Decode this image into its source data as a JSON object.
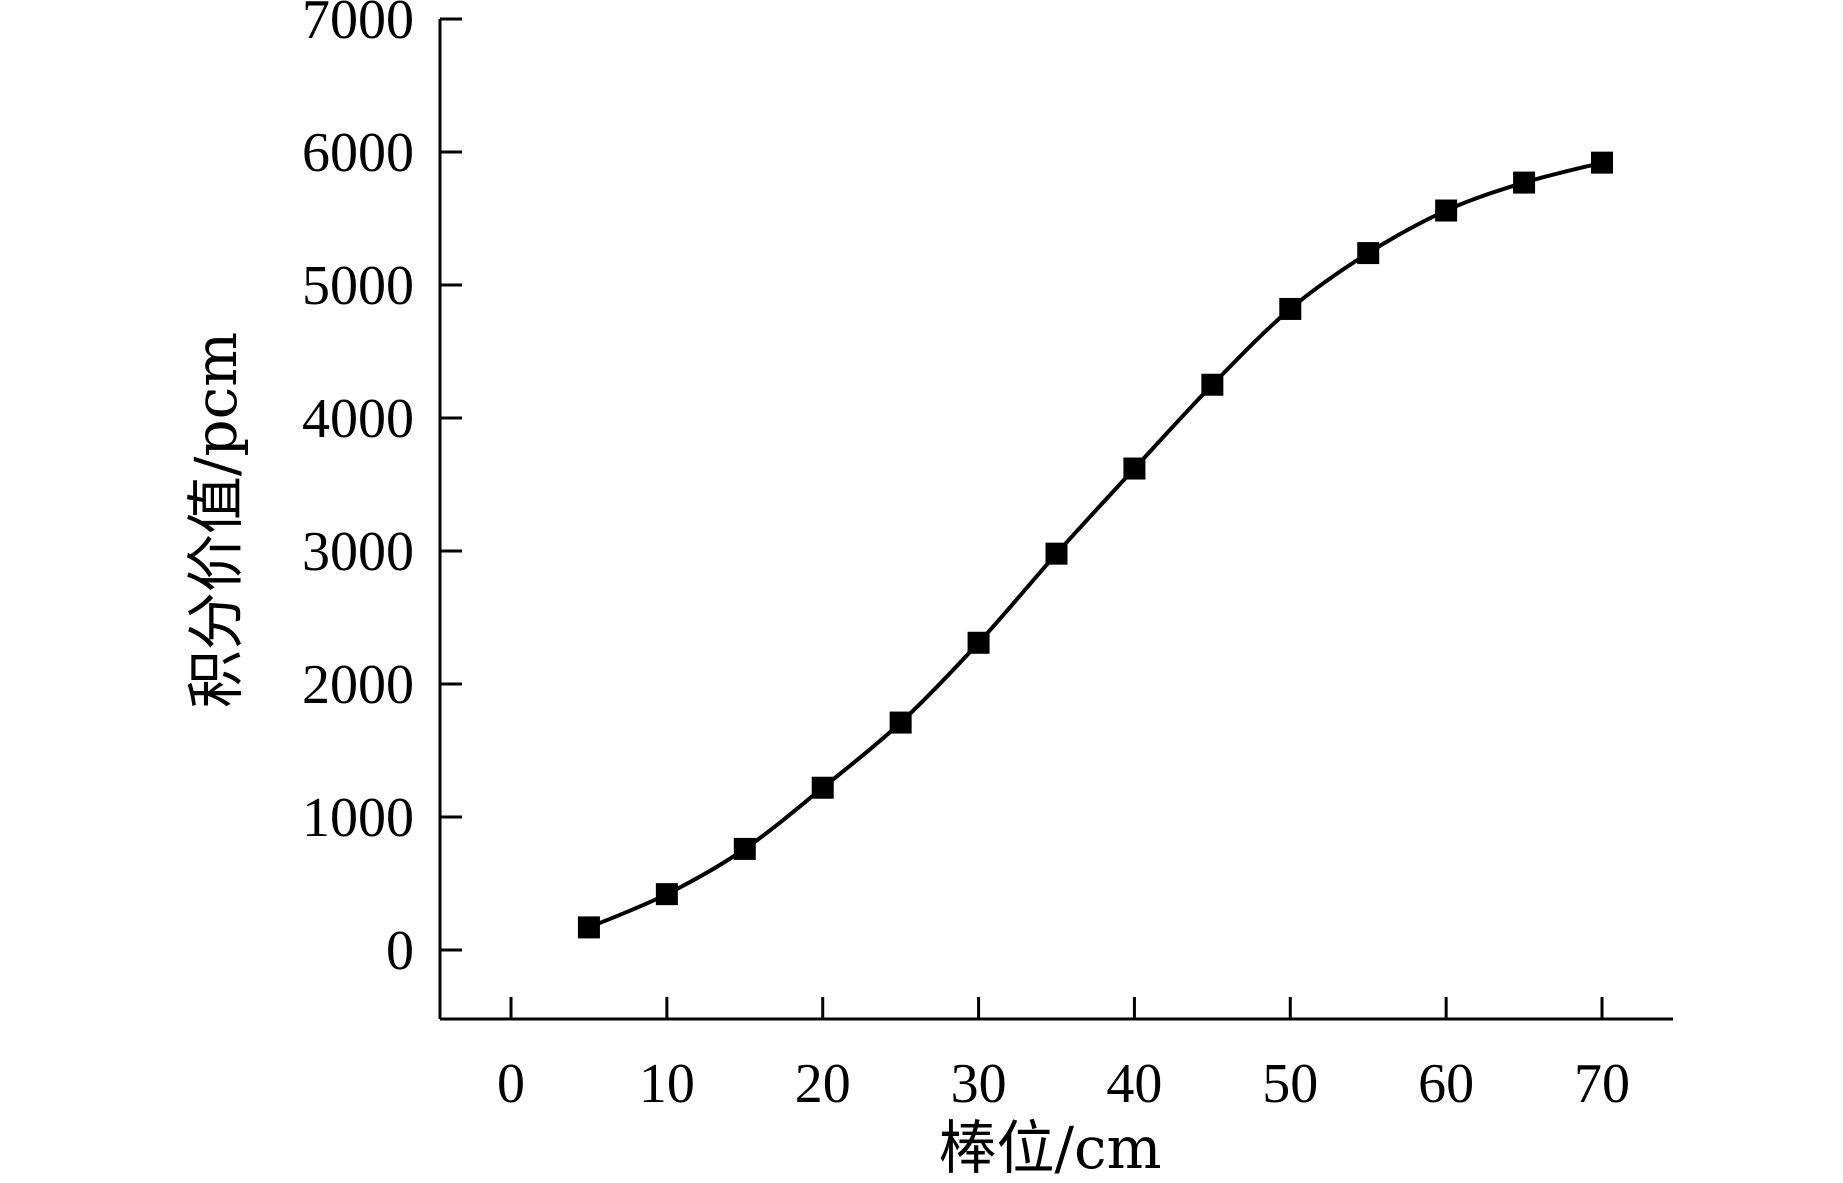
{
  "chart_data": {
    "type": "line",
    "title": "",
    "xlabel": "棒位/cm",
    "ylabel": "积分价值/pcm",
    "xlim": [
      -5,
      75
    ],
    "ylim": [
      -500,
      7000
    ],
    "xticks": [
      0,
      10,
      20,
      30,
      40,
      50,
      60,
      70
    ],
    "yticks": [
      0,
      1000,
      2000,
      3000,
      4000,
      5000,
      6000,
      7000
    ],
    "grid": false,
    "legend": "none",
    "line_color": "#000000",
    "marker": "square",
    "series": [
      {
        "x": [
          5,
          10,
          15,
          20,
          25,
          30,
          35,
          40,
          45,
          50,
          55,
          60,
          65,
          70
        ],
        "y": [
          170,
          420,
          760,
          1220,
          1710,
          2310,
          2980,
          3620,
          4250,
          4820,
          5240,
          5560,
          5770,
          5920
        ]
      }
    ]
  }
}
